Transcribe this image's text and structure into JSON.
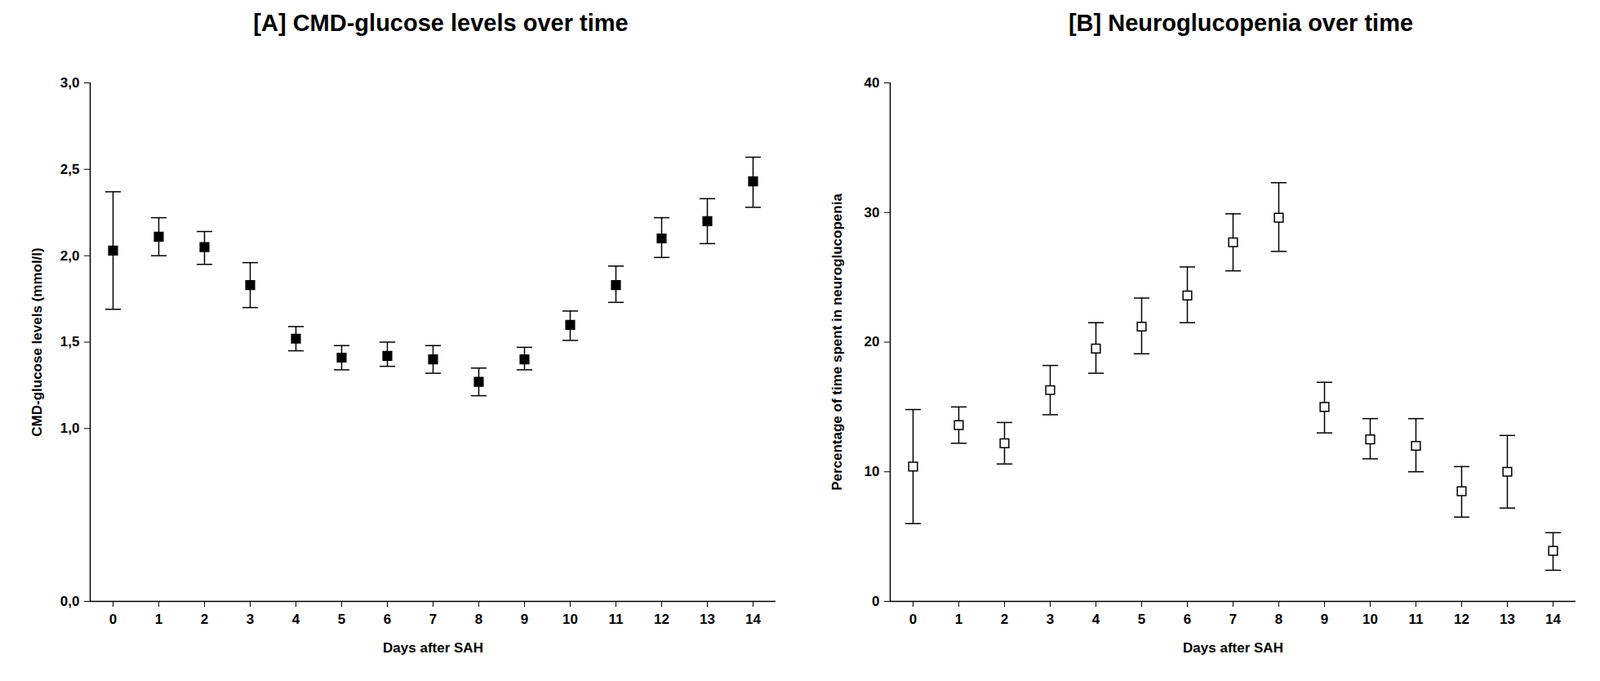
{
  "chart_data": [
    {
      "type": "scatter",
      "title": "[A] CMD-glucose levels over time",
      "x_label": "Days after SAH",
      "y_label": "CMD-glucose levels (mmol/l)",
      "x": [
        0,
        1,
        2,
        3,
        4,
        5,
        6,
        7,
        8,
        9,
        10,
        11,
        12,
        13,
        14
      ],
      "values": [
        2.03,
        2.11,
        2.05,
        1.83,
        1.52,
        1.41,
        1.42,
        1.4,
        1.27,
        1.4,
        1.6,
        1.83,
        2.1,
        2.2,
        2.43
      ],
      "error_low": [
        1.69,
        2.0,
        1.95,
        1.7,
        1.45,
        1.34,
        1.36,
        1.32,
        1.19,
        1.34,
        1.51,
        1.73,
        1.99,
        2.07,
        2.28
      ],
      "error_high": [
        2.37,
        2.22,
        2.14,
        1.96,
        1.59,
        1.48,
        1.5,
        1.48,
        1.35,
        1.47,
        1.68,
        1.94,
        2.22,
        2.33,
        2.57
      ],
      "color": "#000000",
      "marker": "filled-square",
      "xlim": [
        -0.5,
        14.5
      ],
      "xticks": [
        0,
        1,
        2,
        3,
        4,
        5,
        6,
        7,
        8,
        9,
        10,
        11,
        12,
        13,
        14
      ],
      "ylim": [
        0,
        3
      ],
      "yticks": [
        {
          "value": 0,
          "label": "0,0"
        },
        {
          "value": 1,
          "label": "1,0"
        },
        {
          "value": 1.5,
          "label": "1,5"
        },
        {
          "value": 2,
          "label": "2,0"
        },
        {
          "value": 2.5,
          "label": "2,5"
        },
        {
          "value": 3,
          "label": "3,0"
        }
      ],
      "grid": false
    },
    {
      "type": "scatter",
      "title": "[B] Neuroglucopenia over time",
      "x_label": "Days after SAH",
      "y_label": "Percentage of time spent in neuroglucopenia",
      "x": [
        0,
        1,
        2,
        3,
        4,
        5,
        6,
        7,
        8,
        9,
        10,
        11,
        12,
        13,
        14
      ],
      "values": [
        10.4,
        13.6,
        12.2,
        16.3,
        19.5,
        21.2,
        23.6,
        27.7,
        29.6,
        15.0,
        12.5,
        12.0,
        8.5,
        10.0,
        3.9
      ],
      "error_low": [
        6.0,
        12.2,
        10.6,
        14.4,
        17.6,
        19.1,
        21.5,
        25.5,
        27.0,
        13.0,
        11.0,
        10.0,
        6.5,
        7.2,
        2.4
      ],
      "error_high": [
        14.8,
        15.0,
        13.8,
        18.2,
        21.5,
        23.4,
        25.8,
        29.9,
        32.3,
        16.9,
        14.1,
        14.1,
        10.4,
        12.8,
        5.3
      ],
      "color": "#000000",
      "marker": "open-square",
      "xlim": [
        -0.5,
        14.5
      ],
      "xticks": [
        0,
        1,
        2,
        3,
        4,
        5,
        6,
        7,
        8,
        9,
        10,
        11,
        12,
        13,
        14
      ],
      "ylim": [
        0,
        40
      ],
      "yticks": [
        0,
        10,
        20,
        30,
        40
      ],
      "grid": false
    }
  ]
}
